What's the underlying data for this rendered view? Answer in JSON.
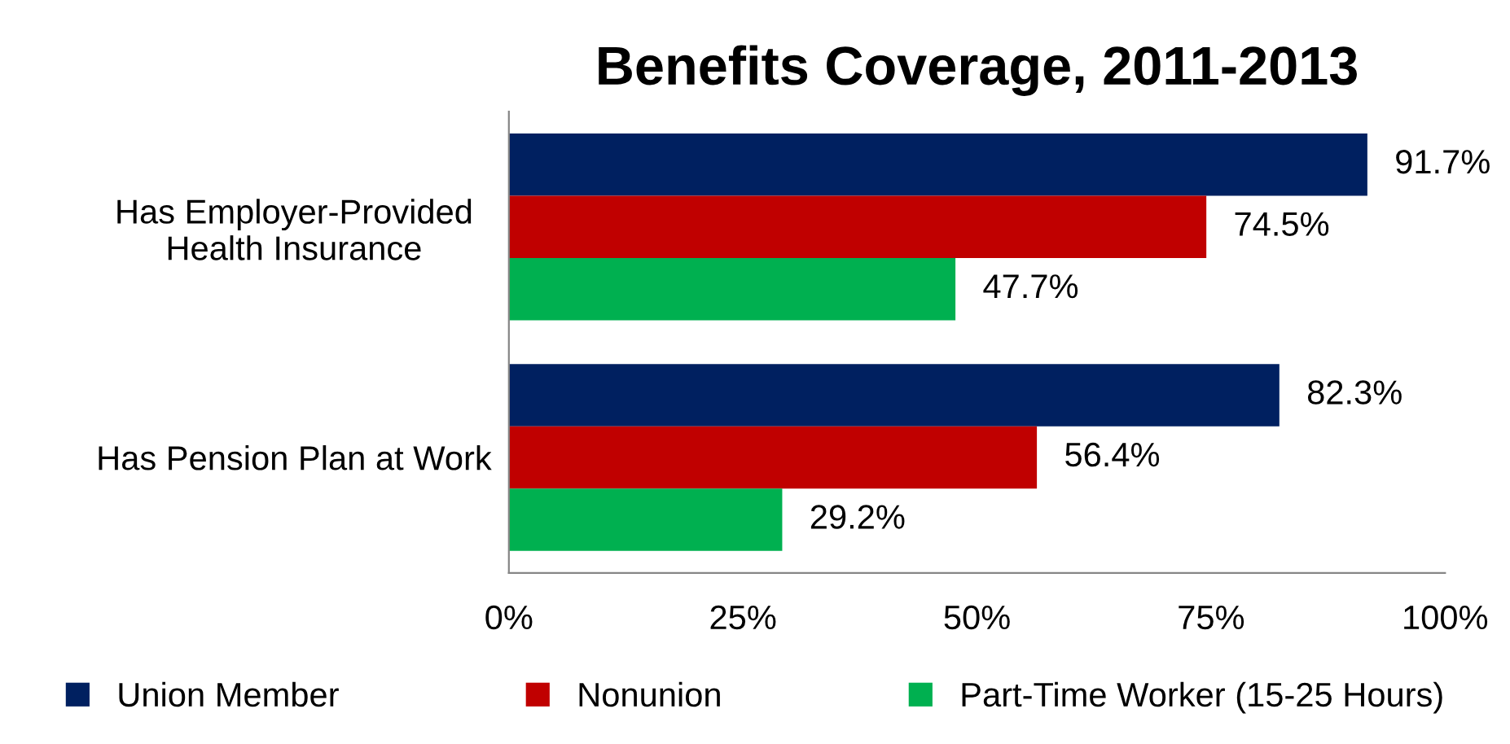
{
  "chart_data": {
    "type": "bar",
    "orientation": "horizontal",
    "title": "Benefits Coverage, 2011-2013",
    "categories": [
      "Has Employer-Provided\nHealth Insurance",
      "Has Pension Plan at Work"
    ],
    "series": [
      {
        "name": "Union Member",
        "color": "#002060",
        "values": [
          91.7,
          82.3
        ],
        "value_labels": [
          "91.7%",
          "82.3%"
        ]
      },
      {
        "name": "Nonunion",
        "color": "#c00000",
        "values": [
          74.5,
          56.4
        ],
        "value_labels": [
          "74.5%",
          "56.4%"
        ]
      },
      {
        "name": "Part-Time Worker (15-25 Hours)",
        "color": "#00b050",
        "values": [
          47.7,
          29.2
        ],
        "value_labels": [
          "47.7%",
          "29.2%"
        ]
      }
    ],
    "xlim": [
      0,
      100
    ],
    "xticks": [
      {
        "value": 0,
        "label": "0%"
      },
      {
        "value": 25,
        "label": "25%"
      },
      {
        "value": 50,
        "label": "50%"
      },
      {
        "value": 75,
        "label": "75%"
      },
      {
        "value": 100,
        "label": "100%"
      }
    ],
    "grid": false,
    "legend": "bottom"
  }
}
